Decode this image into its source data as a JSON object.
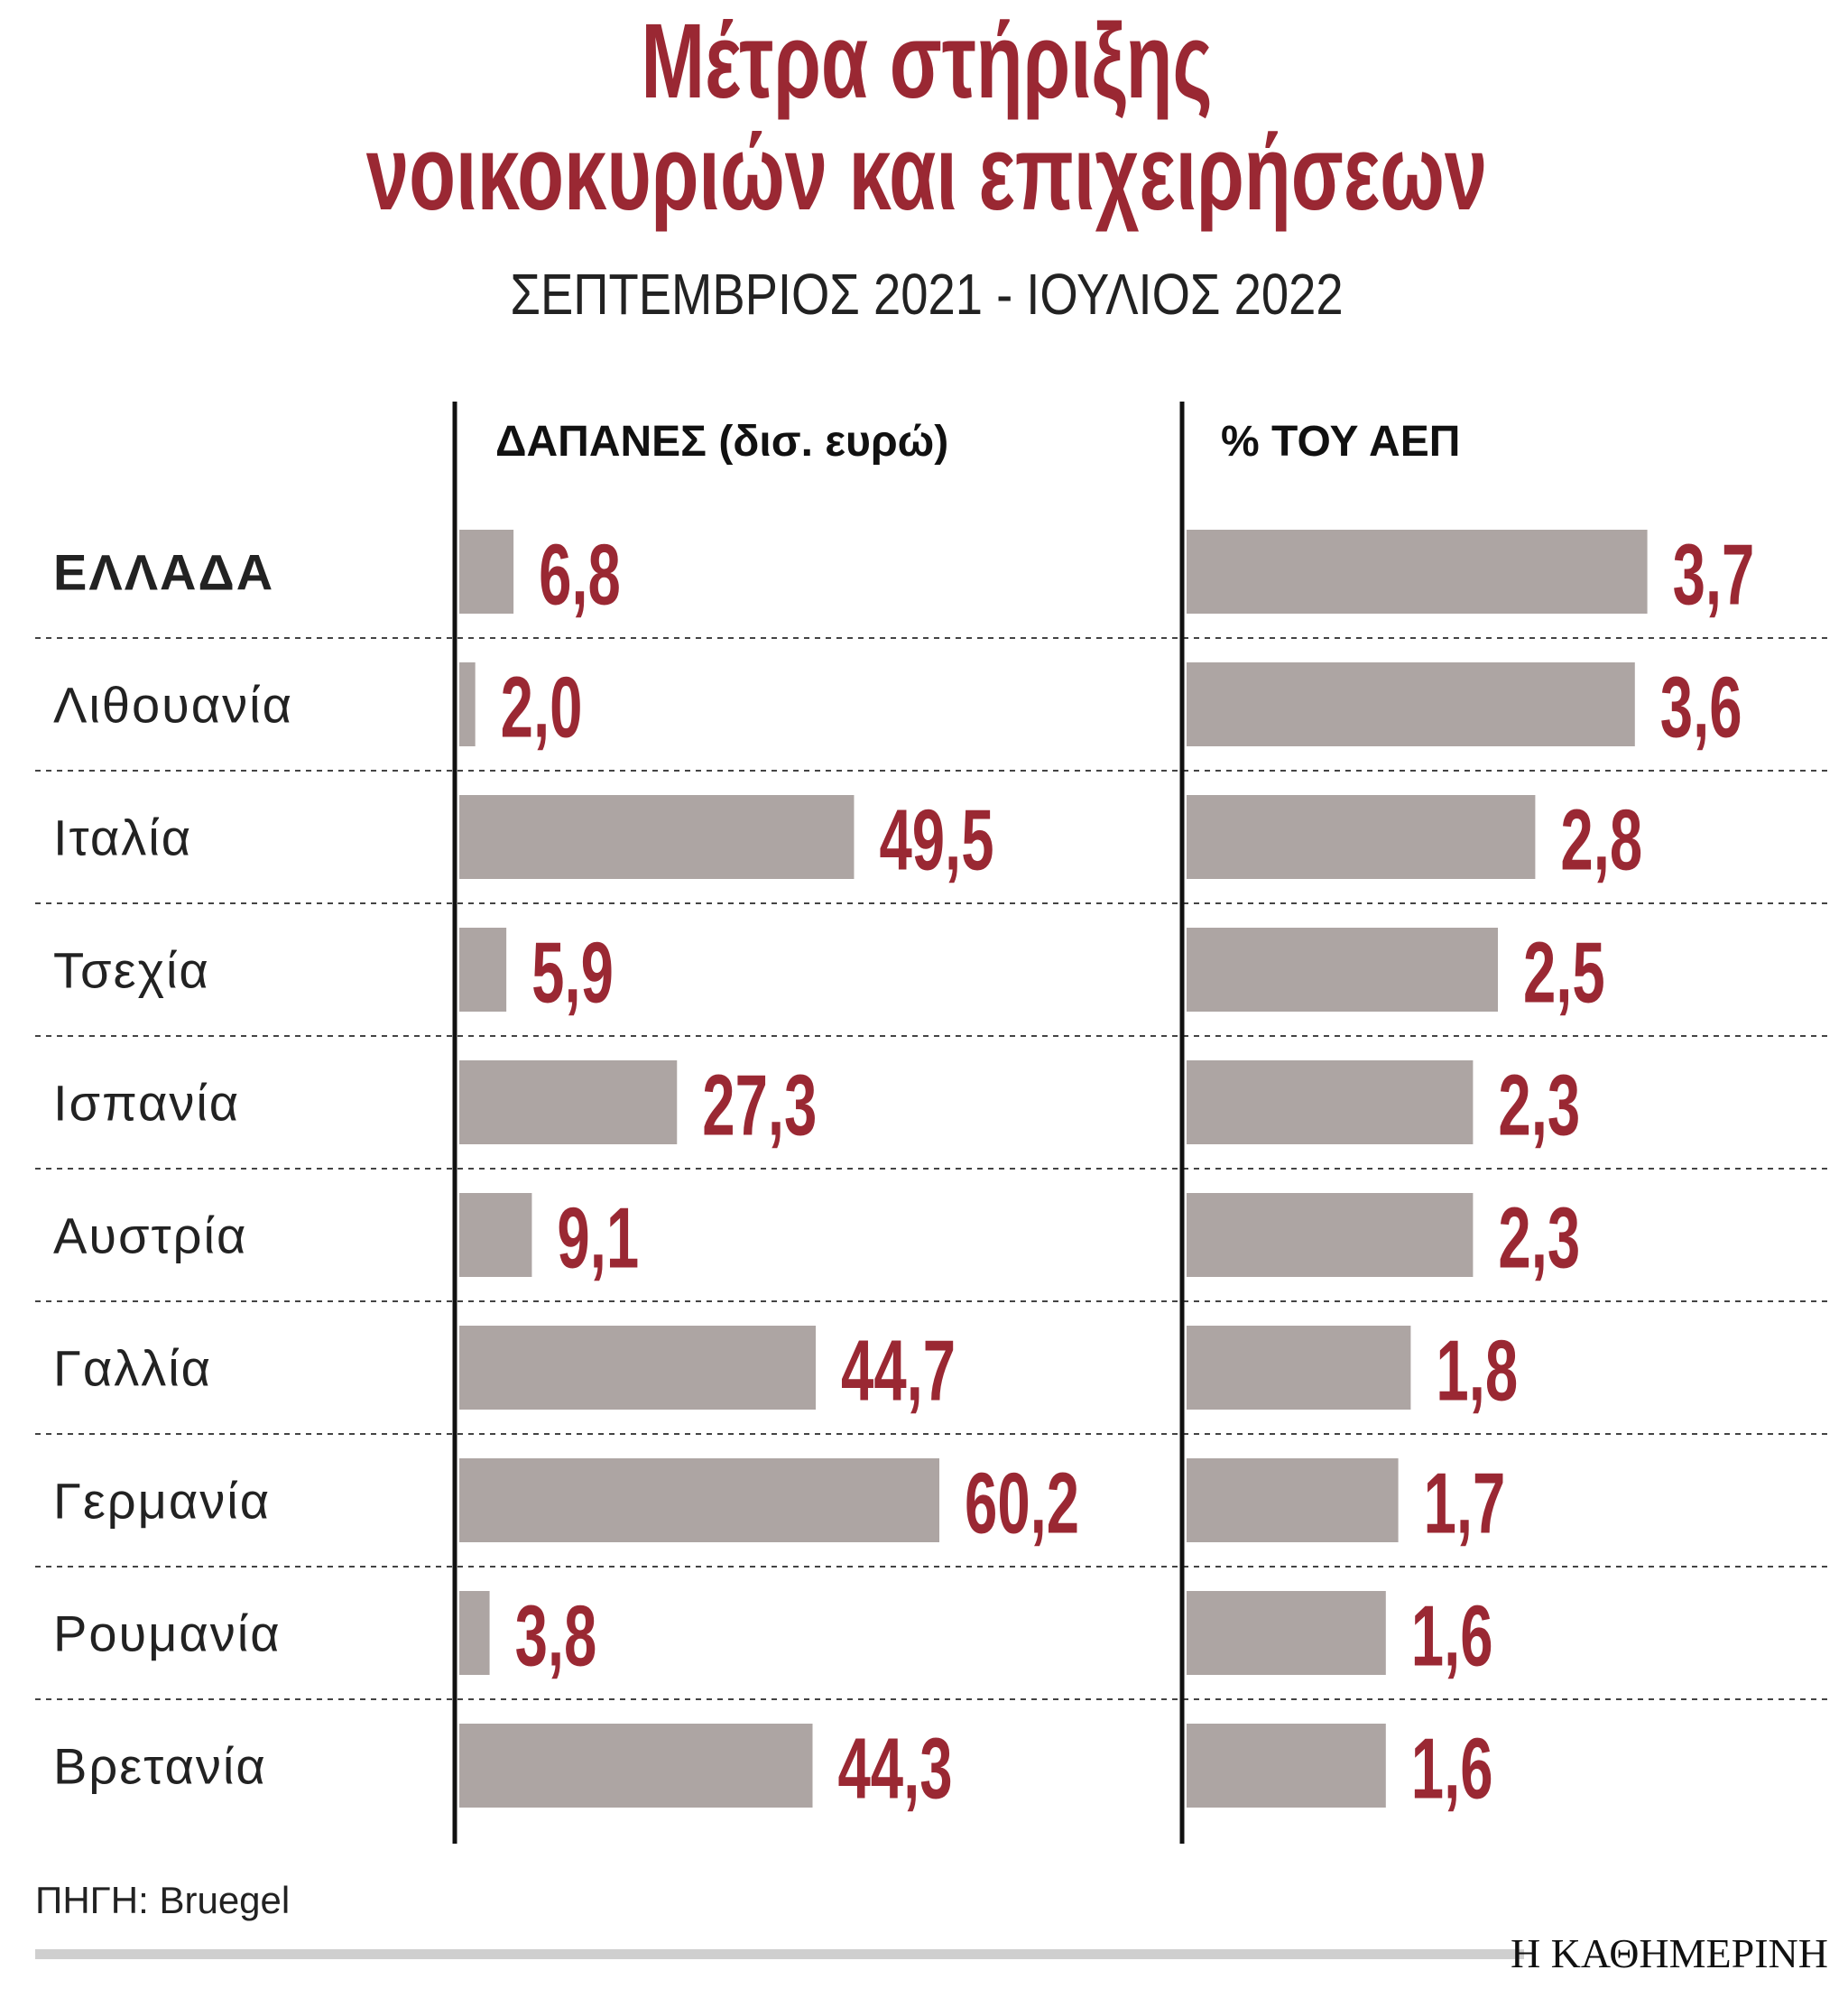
{
  "header": {
    "title_lines": [
      "Μέτρα στήριξης",
      "νοικοκυριών και επιχειρήσεων"
    ],
    "subtitle": "ΣΕΠΤΕΜΒΡΙΟΣ 2021 - ΙΟΥΛΙΟΣ 2022"
  },
  "chart_data": [
    {
      "type": "bar",
      "orientation": "horizontal",
      "title": "ΔΑΠΑΝΕΣ (δισ. ευρώ)",
      "categories": [
        "ΕΛΛΑΔΑ",
        "Λιθουανία",
        "Ιταλία",
        "Τσεχία",
        "Ισπανία",
        "Αυστρία",
        "Γαλλία",
        "Γερμανία",
        "Ρουμανία",
        "Βρετανία"
      ],
      "values": [
        6.8,
        2.0,
        49.5,
        5.9,
        27.3,
        9.1,
        44.7,
        60.2,
        3.8,
        44.3
      ],
      "value_labels": [
        "6,8",
        "2,0",
        "49,5",
        "5,9",
        "27,3",
        "9,1",
        "44,7",
        "60,2",
        "3,8",
        "44,3"
      ],
      "color": "#ada5a3",
      "label_color": "#9a2833",
      "xlim": [
        0,
        80
      ]
    },
    {
      "type": "bar",
      "orientation": "horizontal",
      "title": "% ΤΟΥ ΑΕΠ",
      "values": [
        3.7,
        3.6,
        2.8,
        2.5,
        2.3,
        2.3,
        1.8,
        1.7,
        1.6,
        1.6
      ],
      "value_labels": [
        "3,7",
        "3,6",
        "2,8",
        "2,5",
        "2,3",
        "2,3",
        "1,8",
        "1,7",
        "1,6",
        "1,6"
      ],
      "color": "#ada5a3",
      "label_color": "#9a2833",
      "xlim": [
        0,
        5
      ]
    }
  ],
  "source": "ΠΗΓΗ: Bruegel",
  "brand": "Η ΚΑΘΗΜΕΡΙΝΗ"
}
